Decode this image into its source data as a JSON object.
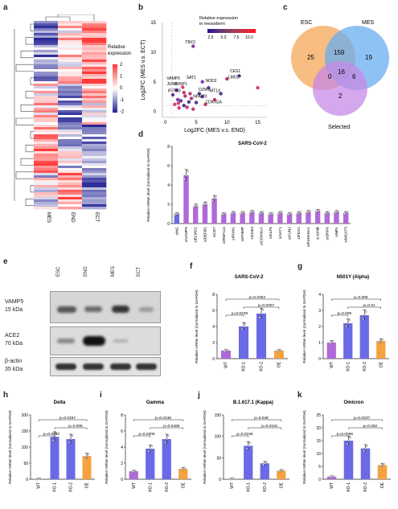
{
  "panels": {
    "a": {
      "letter": "a",
      "legend_title": "Relative expression",
      "legend_ticks": [
        "2",
        "1",
        "0",
        "-1",
        "-2"
      ],
      "columns": [
        "MES",
        "END",
        "ECT"
      ]
    },
    "b": {
      "letter": "b",
      "ylabel": "Log2FC (MES v.s. ECT)",
      "xlabel": "Log2FC (MES v.s. END)",
      "colorbar_title": "Relative expression in mesoderm",
      "colorbar_ticks": [
        "2.5",
        "5.0",
        "7.5",
        "10.0"
      ],
      "yticks": [
        "15",
        "10",
        "5",
        "0"
      ],
      "xticks": [
        "0",
        "5",
        "10",
        "15"
      ],
      "gene_labels": [
        "TBX3",
        "CES1",
        "LMO2",
        "VAMP5",
        "SAT1",
        "NOD2",
        "JUNB",
        "IRNP1",
        "IFITM3",
        "DZW2",
        "MT1X",
        "NFAIP3",
        "CDKN1A"
      ]
    },
    "c": {
      "letter": "c",
      "sets": [
        "ESC",
        "MES",
        "Selected"
      ],
      "counts": {
        "esc_only": "25",
        "esc_mes": "159",
        "mes_only": "19",
        "esc_sel": "0",
        "center": "16",
        "mes_sel": "6",
        "sel_only": "2"
      },
      "colors": {
        "esc": "#f7b26b",
        "mes": "#6aaef0",
        "sel": "#c789e6"
      }
    },
    "d": {
      "letter": "d",
      "title": "SARS-CoV-2",
      "ylabel": "Relative mRNA level (normalized to GAPDH)",
      "yticks": [
        "8",
        "6",
        "4",
        "2",
        "0"
      ]
    },
    "e": {
      "letter": "e",
      "lanes": [
        "ESC",
        "END",
        "MES",
        "ECT"
      ],
      "rows": [
        {
          "protein": "VAMP5",
          "size": "15 kDa"
        },
        {
          "protein": "ACE2",
          "size": "70 kDa"
        },
        {
          "protein": "β-actin",
          "size": "35 kDa"
        }
      ]
    },
    "f": {
      "letter": "f",
      "title": "SARS-CoV-2",
      "ylabel": "Relative mRNA level (normalized to GAPDH)",
      "yticks": [
        "8",
        "6",
        "4",
        "2",
        "0"
      ],
      "pvals": [
        "p=0.0354",
        "p=0.0007",
        "p=0.0228"
      ]
    },
    "g": {
      "letter": "g",
      "title": "N501Y (Alpha)",
      "ylabel": "Relative mRNA level (normalized to GAPDH)",
      "yticks": [
        "4",
        "3",
        "2",
        "1",
        "0"
      ],
      "pvals": [
        "p=0.006",
        "p=0.01",
        "p=0.005"
      ]
    },
    "h": {
      "letter": "h",
      "title": "Delta",
      "ylabel": "Relative mRNA level (normalized to GAPDH)",
      "yticks": [
        "200",
        "150",
        "100",
        "50",
        "0"
      ],
      "pvals": [
        "p=0.0257",
        "p=0.005",
        "p=0.0002"
      ]
    },
    "i": {
      "letter": "i",
      "title": "Gamma",
      "ylabel": "Relative mRNA level (normalized to GAPDH)",
      "yticks": [
        "8",
        "6",
        "4",
        "2",
        "0"
      ],
      "pvals": [
        "p=0.0436",
        "p=0.0486",
        "p=0.0306"
      ]
    },
    "j": {
      "letter": "j",
      "title": "B.1.617.1 (Kappa)",
      "ylabel": "Relative mRNA level (normalized to GAPDH)",
      "yticks": [
        "150",
        "100",
        "50",
        "0"
      ],
      "pvals": [
        "p=0.048",
        "p=0.0191",
        "p=0.0156"
      ]
    },
    "k": {
      "letter": "k",
      "title": "Omicron",
      "ylabel": "Relative mRNA level (normalized to GAPDH)",
      "yticks": [
        "25",
        "20",
        "15",
        "10",
        "5",
        "0"
      ],
      "pvals": [
        "p=0.0337",
        "p=0.002",
        "p=0.0066"
      ]
    }
  },
  "chart_data": [
    {
      "id": "d",
      "type": "bar",
      "title": "SARS-CoV-2",
      "ylabel": "Relative mRNA level (normalized to GAPDH)",
      "ylim": [
        0,
        8
      ],
      "categories": [
        "siNC",
        "siVAMP5",
        "siELMO1",
        "siDEFB1",
        "siCD7",
        "siRNF114",
        "siPUM1",
        "siIFNMP",
        "siCD63",
        "siCDKN1A",
        "siKLF6",
        "siSAT1",
        "siFUN2",
        "siFDX1",
        "siPLEKHA1",
        "siJUNB",
        "siSRPX",
        "siNPL",
        "siMGAT5"
      ],
      "values": [
        1.0,
        5.0,
        1.8,
        2.0,
        2.6,
        1.0,
        1.1,
        1.1,
        1.2,
        1.1,
        1.0,
        1.1,
        1.0,
        1.1,
        1.2,
        1.3,
        1.1,
        1.2,
        1.1
      ],
      "colors": {
        "control": "#6a6ae6",
        "bar": "#b069d9"
      }
    },
    {
      "id": "f",
      "type": "bar",
      "title": "SARS-CoV-2",
      "ylim": [
        0,
        8
      ],
      "categories": [
        "WT",
        "KO-1",
        "KO-2",
        "OE"
      ],
      "values": [
        1.0,
        4.0,
        5.6,
        1.0
      ]
    },
    {
      "id": "g",
      "type": "bar",
      "title": "N501Y (Alpha)",
      "ylim": [
        0,
        4
      ],
      "categories": [
        "WT",
        "KO-1",
        "KO-2",
        "OE"
      ],
      "values": [
        1.0,
        2.2,
        2.7,
        1.1
      ]
    },
    {
      "id": "h",
      "type": "bar",
      "title": "Delta",
      "ylim": [
        0,
        200
      ],
      "categories": [
        "WT",
        "KO-1",
        "KO-2",
        "OE"
      ],
      "values": [
        1,
        132,
        125,
        72
      ]
    },
    {
      "id": "i",
      "type": "bar",
      "title": "Gamma",
      "ylim": [
        0,
        8
      ],
      "categories": [
        "WT",
        "KO-1",
        "KO-2",
        "OE"
      ],
      "values": [
        1.0,
        3.8,
        5.0,
        1.3
      ]
    },
    {
      "id": "j",
      "type": "bar",
      "title": "B.1.617.1 (Kappa)",
      "ylim": [
        0,
        150
      ],
      "categories": [
        "WT",
        "KO-1",
        "KO-2",
        "OE"
      ],
      "values": [
        1,
        78,
        37,
        20
      ]
    },
    {
      "id": "k",
      "type": "bar",
      "title": "Omicron",
      "ylim": [
        0,
        25
      ],
      "categories": [
        "WT",
        "KO-1",
        "KO-2",
        "OE"
      ],
      "values": [
        1,
        15,
        12,
        5.5
      ]
    }
  ]
}
